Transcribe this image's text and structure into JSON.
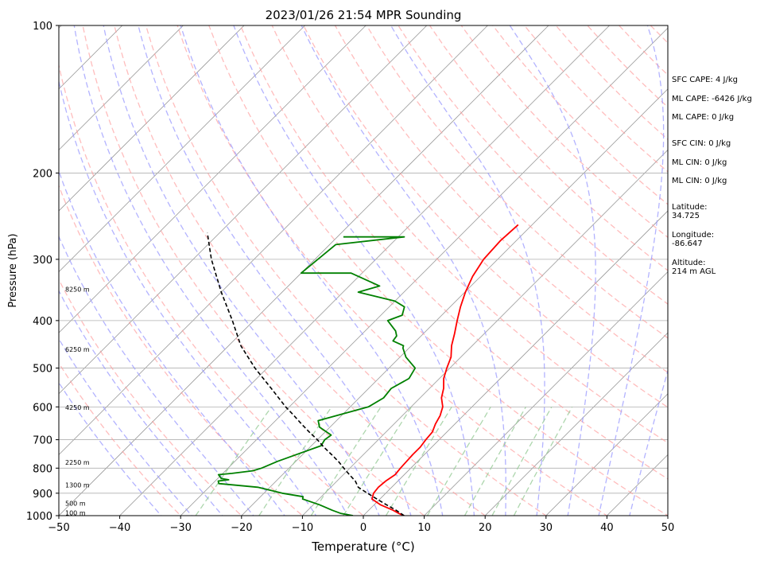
{
  "chart_data": {
    "type": "skew-t",
    "title": "2023/01/26 21:54 MPR Sounding",
    "xlabel": "Temperature (°C)",
    "ylabel": "Pressure (hPa)",
    "xlim": [
      -50,
      50
    ],
    "ylim": [
      1000,
      100
    ],
    "y_scale": "log",
    "x_ticks": [
      "−50",
      "−40",
      "−30",
      "−20",
      "−10",
      "0",
      "10",
      "20",
      "30",
      "40",
      "50"
    ],
    "x_tick_values": [
      -50,
      -40,
      -30,
      -20,
      -10,
      0,
      10,
      20,
      30,
      40,
      50
    ],
    "y_ticks": [
      "1000",
      "900",
      "800",
      "700",
      "600",
      "500",
      "400",
      "300",
      "200",
      "100"
    ],
    "y_tick_values": [
      1000,
      900,
      800,
      700,
      600,
      500,
      400,
      300,
      200,
      100
    ],
    "grid": true,
    "colors": {
      "temperature": "#ff0000",
      "dewpoint": "#008000",
      "parcel": "#000000",
      "dry_adiabats": "#ff9999",
      "moist_adiabats": "#9999ff",
      "mixing_ratio": "#99cc99",
      "isotherms": "#999999"
    },
    "series": [
      {
        "key": "temperature",
        "points": [
          [
            6.7,
            1000
          ],
          [
            5.5,
            990
          ],
          [
            4,
            975
          ],
          [
            1,
            950
          ],
          [
            -1.3,
            925
          ],
          [
            -2,
            900
          ],
          [
            -2.2,
            875
          ],
          [
            -2,
            850
          ],
          [
            -1.5,
            825
          ],
          [
            -1.7,
            800
          ],
          [
            -1.8,
            775
          ],
          [
            -1.9,
            750
          ],
          [
            -1.9,
            725
          ],
          [
            -2.2,
            700
          ],
          [
            -2.4,
            675
          ],
          [
            -3.2,
            650
          ],
          [
            -3.8,
            625
          ],
          [
            -4.8,
            600
          ],
          [
            -6.5,
            575
          ],
          [
            -7.7,
            550
          ],
          [
            -9.3,
            525
          ],
          [
            -10.5,
            500
          ],
          [
            -11.6,
            475
          ],
          [
            -13.4,
            450
          ],
          [
            -14.9,
            425
          ],
          [
            -16.6,
            400
          ],
          [
            -18.3,
            375
          ],
          [
            -19.9,
            350
          ],
          [
            -21.3,
            325
          ],
          [
            -22.3,
            300
          ],
          [
            -22.6,
            275
          ],
          [
            -22.3,
            255
          ]
        ]
      },
      {
        "key": "dewpoint",
        "points": [
          [
            -1.7,
            1000
          ],
          [
            -4,
            990
          ],
          [
            -6,
            975
          ],
          [
            -9,
            950
          ],
          [
            -12.7,
            925
          ],
          [
            -13,
            915
          ],
          [
            -17,
            900
          ],
          [
            -22,
            875
          ],
          [
            -29,
            860
          ],
          [
            -29.5,
            850
          ],
          [
            -28,
            845
          ],
          [
            -29.4,
            840
          ],
          [
            -30.5,
            825
          ],
          [
            -28.5,
            820
          ],
          [
            -25.5,
            810
          ],
          [
            -24.5,
            800
          ],
          [
            -23,
            775
          ],
          [
            -18.4,
            720
          ],
          [
            -18.8,
            700
          ],
          [
            -18.5,
            685
          ],
          [
            -21.7,
            660
          ],
          [
            -23,
            640
          ],
          [
            -17,
            600
          ],
          [
            -16,
            575
          ],
          [
            -16.3,
            550
          ],
          [
            -15,
            525
          ],
          [
            -15.7,
            500
          ],
          [
            -19,
            475
          ],
          [
            -21,
            455
          ],
          [
            -21.3,
            450
          ],
          [
            -23.8,
            440
          ],
          [
            -24,
            430
          ],
          [
            -25,
            420
          ],
          [
            -28,
            400
          ],
          [
            -26.5,
            390
          ],
          [
            -27.5,
            375
          ],
          [
            -30,
            365
          ],
          [
            -37.5,
            350
          ],
          [
            -35,
            340
          ],
          [
            -41.8,
            320
          ],
          [
            -50,
            320
          ],
          [
            -49,
            280
          ],
          [
            -39,
            270
          ],
          [
            -49,
            270
          ]
        ]
      },
      {
        "key": "parcel",
        "points": [
          [
            6.7,
            1000
          ],
          [
            4.5,
            975
          ],
          [
            2,
            950
          ],
          [
            -0.5,
            925
          ],
          [
            -3,
            900
          ],
          [
            -5.5,
            875
          ],
          [
            -7,
            850
          ],
          [
            -9,
            825
          ],
          [
            -11,
            800
          ],
          [
            -13,
            775
          ],
          [
            -15.3,
            750
          ],
          [
            -17.7,
            725
          ],
          [
            -20,
            700
          ],
          [
            -22.6,
            675
          ],
          [
            -25.2,
            650
          ],
          [
            -27.8,
            625
          ],
          [
            -30.6,
            600
          ],
          [
            -36,
            550
          ],
          [
            -42,
            500
          ],
          [
            -48,
            450
          ],
          [
            -53.5,
            400
          ],
          [
            -60,
            350
          ],
          [
            -67,
            300
          ],
          [
            -72,
            265
          ]
        ]
      }
    ],
    "height_labels": [
      {
        "label": "100 m",
        "pressure": 987
      },
      {
        "label": "500 m",
        "pressure": 943
      },
      {
        "label": "1300 m",
        "pressure": 866
      },
      {
        "label": "2250 m",
        "pressure": 778
      },
      {
        "label": "4250 m",
        "pressure": 602
      },
      {
        "label": "6250 m",
        "pressure": 458
      },
      {
        "label": "8250 m",
        "pressure": 345
      }
    ]
  },
  "stats": {
    "sfc_cape": "SFC CAPE: 4 J/kg",
    "ml_cape_1": "ML CAPE: -6426 J/kg",
    "ml_cape_2": "ML CAPE: 0 J/kg",
    "sfc_cin": "SFC CIN: 0 J/kg",
    "ml_cin_1": "ML CIN: 0 J/kg",
    "ml_cin_2": "ML CIN: 0 J/kg",
    "latitude": "Latitude:\n34.725",
    "longitude": "Longitude:\n-86.647",
    "altitude": "Altitude:\n214 m AGL"
  }
}
